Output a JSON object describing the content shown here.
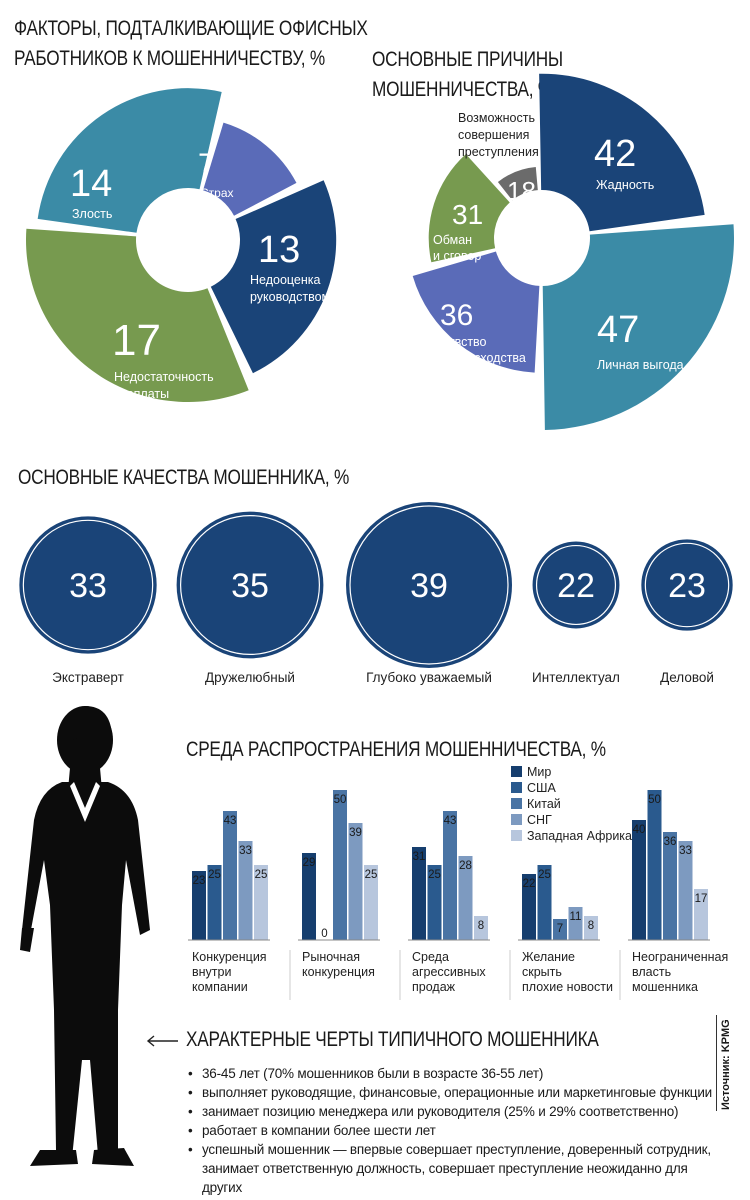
{
  "colors": {
    "navy": "#1a4478",
    "teal": "#3b8ba6",
    "green": "#779a4f",
    "purple": "#5a6bb8",
    "gray": "#6b6b6b",
    "mir": "#163e6e",
    "ssha": "#2a5a8e",
    "kitai": "#4a74a4",
    "sng": "#7d9ac0",
    "africa": "#b7c6dd"
  },
  "titles": {
    "factors": [
      "ФАКТОРЫ, ПОДТАЛКИВАЮЩИЕ ОФИСНЫХ",
      "РАБОТНИКОВ К МОШЕННИЧЕСТВУ, %"
    ],
    "reasons": "ОСНОВНЫЕ ПРИЧИНЫ МОШЕННИЧЕСТВА, %",
    "qualities": "ОСНОВНЫЕ КАЧЕСТВА МОШЕННИКА, %",
    "environment": "СРЕДА РАСПРОСТРАНЕНИЯ МОШЕННИЧЕСТВА, %",
    "traits": "ХАРАКТЕРНЫЕ ЧЕРТЫ ТИПИЧНОГО МОШЕННИКА"
  },
  "traits_list": [
    "36-45 лет (70% мошенников были в возрасте 36-55 лет)",
    "выполняет руководящие, финансовые, операционные или маркетинговые функции",
    "занимает позицию менеджера или руководителя (25% и 29% соответственно)",
    "работает в компании более шести лет",
    "успешный мошенник — впервые совершает преступление, доверенный сотрудник,",
    "занимает ответственную должность, совершает преступление неожиданно для других"
  ],
  "source": "Источник: KPMG",
  "chart_data": [
    {
      "type": "pie",
      "id": "factors",
      "title": "ФАКТОРЫ, ПОДТАЛКИВАЮЩИЕ ОФИСНЫХ РАБОТНИКОВ К МОШЕННИЧЕСТВУ, %",
      "slices": [
        {
          "label": "Злость",
          "value": 14,
          "color": "#3b8ba6"
        },
        {
          "label": "Страх",
          "value": 7,
          "color": "#5a6bb8"
        },
        {
          "label": "Недооценка руководством",
          "value": 13,
          "color": "#1a4478"
        },
        {
          "label": "Недостаточность зарплаты",
          "value": 17,
          "color": "#779a4f"
        }
      ]
    },
    {
      "type": "pie",
      "id": "reasons",
      "title": "ОСНОВНЫЕ ПРИЧИНЫ МОШЕННИЧЕСТВА, %",
      "slices": [
        {
          "label": "Жадность",
          "value": 42,
          "color": "#1a4478"
        },
        {
          "label": "Личная выгода",
          "value": 47,
          "color": "#3b8ba6"
        },
        {
          "label": "Чувство превосходства",
          "value": 36,
          "color": "#5a6bb8"
        },
        {
          "label": "Обман и сговор",
          "value": 31,
          "color": "#779a4f"
        },
        {
          "label": "Возможность совершения преступления",
          "value": 18,
          "color": "#6b6b6b"
        }
      ]
    },
    {
      "type": "bubble",
      "id": "qualities",
      "title": "ОСНОВНЫЕ КАЧЕСТВА МОШЕННИКА, %",
      "items": [
        {
          "label": "Экстраверт",
          "value": 33
        },
        {
          "label": "Дружелюбный",
          "value": 35
        },
        {
          "label": "Глубоко уважаемый",
          "value": 39
        },
        {
          "label": "Интеллектуал",
          "value": 22
        },
        {
          "label": "Деловой",
          "value": 23
        }
      ]
    },
    {
      "type": "bar",
      "id": "environment",
      "title": "СРЕДА РАСПРОСТРАНЕНИЯ МОШЕННИЧЕСТВА, %",
      "categories": [
        "Конкуренция внутри компании",
        "Рыночная конкуренция",
        "Среда агрессивных продаж",
        "Желание скрыть плохие новости",
        "Неограниченная власть мошенника"
      ],
      "category_lines": [
        [
          "Конкуренция",
          "внутри",
          "компании"
        ],
        [
          "Рыночная",
          "конкуренция"
        ],
        [
          "Среда",
          "агрессивных",
          "продаж"
        ],
        [
          "Желание",
          "скрыть",
          "плохие новости"
        ],
        [
          "Неограниченная",
          "власть",
          "мошенника"
        ]
      ],
      "series": [
        {
          "name": "Мир",
          "values": [
            23,
            29,
            31,
            22,
            40
          ]
        },
        {
          "name": "США",
          "values": [
            25,
            0,
            25,
            25,
            50
          ]
        },
        {
          "name": "Китай",
          "values": [
            43,
            50,
            43,
            7,
            36
          ]
        },
        {
          "name": "СНГ",
          "values": [
            33,
            39,
            28,
            11,
            33
          ]
        },
        {
          "name": "Западная Африка",
          "values": [
            25,
            25,
            8,
            8,
            17
          ]
        }
      ],
      "legend": "top-right",
      "ylim": [
        0,
        50
      ]
    }
  ]
}
